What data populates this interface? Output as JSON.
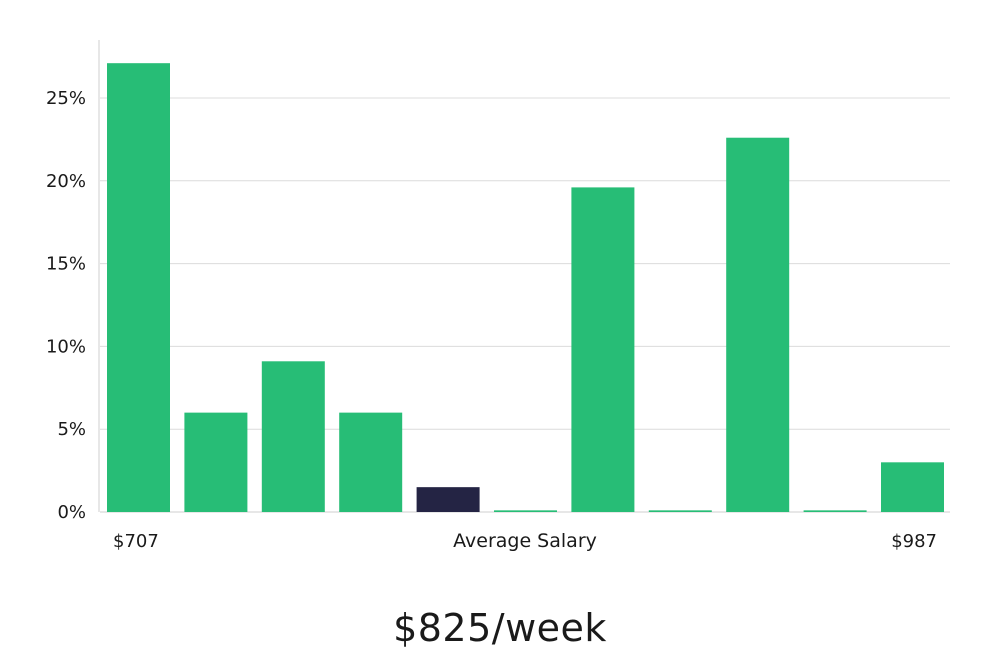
{
  "chart_data": {
    "type": "bar",
    "categories": [
      "",
      "",
      "",
      "",
      "",
      "",
      "",
      "",
      "",
      "",
      ""
    ],
    "values": [
      27.1,
      6.0,
      9.1,
      6.0,
      1.5,
      0.1,
      19.6,
      0.1,
      22.6,
      0.1,
      3.0
    ],
    "highlight_index": 4,
    "colors": {
      "bar": "#27bd76",
      "highlight": "#242444",
      "grid": "#dcdcdc",
      "axis": "#cfcfcf"
    },
    "ylim": [
      0,
      28.5
    ],
    "yticks": [
      0,
      5,
      10,
      15,
      20,
      25
    ],
    "ytick_labels": [
      "0%",
      "5%",
      "10%",
      "15%",
      "20%",
      "25%"
    ],
    "x_min_label": "$707",
    "x_max_label": "$987",
    "xlabel": "Average Salary",
    "grid": true
  },
  "headline": "$825/week"
}
